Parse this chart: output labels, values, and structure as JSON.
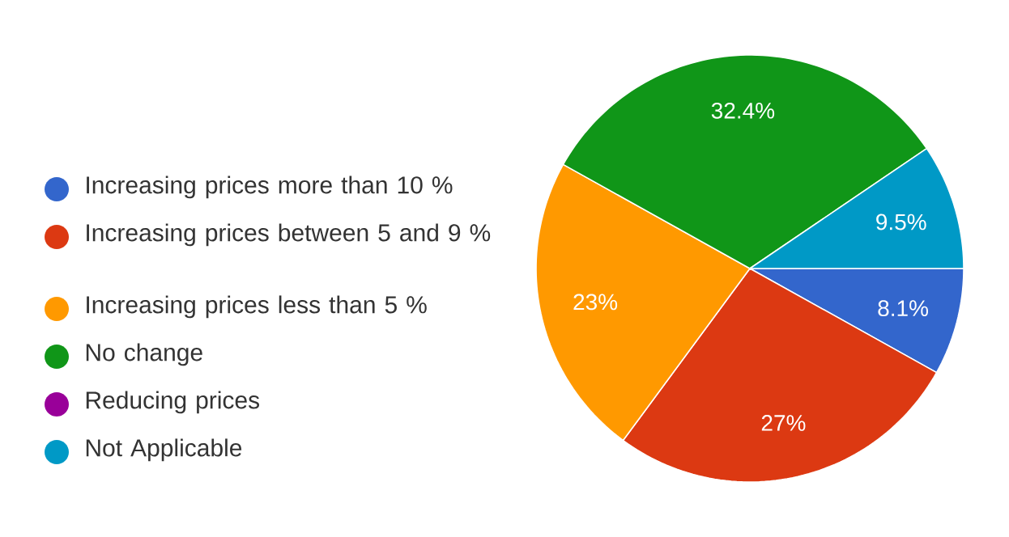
{
  "chart_data": {
    "type": "pie",
    "categories": [
      "Increasing prices more than 10 %",
      "Increasing prices between 5 and 9 %",
      "Increasing prices less than 5 %",
      "No change",
      "Reducing prices",
      "Not Applicable"
    ],
    "values": [
      8.1,
      27,
      23,
      32.4,
      0,
      9.5
    ],
    "colors": [
      "#3366cc",
      "#dc3912",
      "#ff9900",
      "#109618",
      "#990099",
      "#0099c6"
    ],
    "value_labels": [
      "8.1%",
      "27%",
      "23%",
      "32.4%",
      null,
      "9.5%"
    ],
    "legend": "left"
  }
}
